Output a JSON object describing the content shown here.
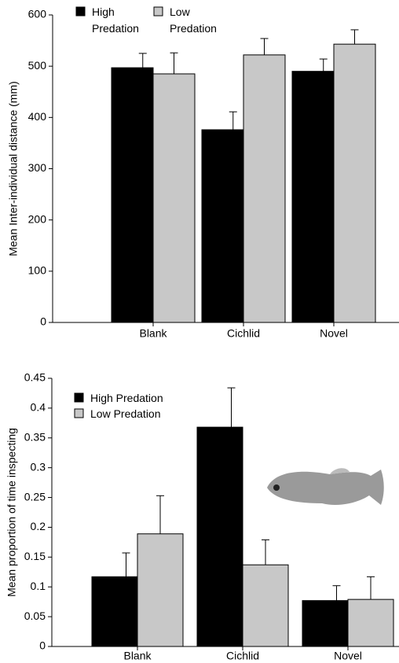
{
  "chart_data": [
    {
      "type": "bar",
      "ylabel": "Mean Inter-individual distance (mm)",
      "categories": [
        "Blank",
        "Cichlid",
        "Novel"
      ],
      "series": [
        {
          "name": "High Predation",
          "color": "#000000",
          "values": [
            497,
            376,
            490
          ],
          "errors": [
            28,
            35,
            24
          ]
        },
        {
          "name": "Low Predation",
          "color": "#c8c8c8",
          "values": [
            485,
            522,
            543
          ],
          "errors": [
            41,
            32,
            28
          ]
        }
      ],
      "ylim": [
        0,
        600
      ],
      "yticks": [
        0,
        100,
        200,
        300,
        400,
        500,
        600
      ],
      "legend": "top-left"
    },
    {
      "type": "bar",
      "ylabel": "Mean proportion of time inspecting",
      "categories": [
        "Blank",
        "Cichlid",
        "Novel"
      ],
      "series": [
        {
          "name": "High Predation",
          "color": "#000000",
          "values": [
            0.117,
            0.368,
            0.077
          ],
          "errors": [
            0.04,
            0.066,
            0.025
          ]
        },
        {
          "name": "Low Predation",
          "color": "#c8c8c8",
          "values": [
            0.189,
            0.137,
            0.079
          ],
          "errors": [
            0.064,
            0.042,
            0.038
          ]
        }
      ],
      "ylim": [
        0,
        0.45
      ],
      "yticks": [
        0,
        0.05,
        0.1,
        0.15,
        0.2,
        0.25,
        0.3,
        0.35,
        0.4,
        0.45
      ],
      "legend": "top-left"
    }
  ]
}
